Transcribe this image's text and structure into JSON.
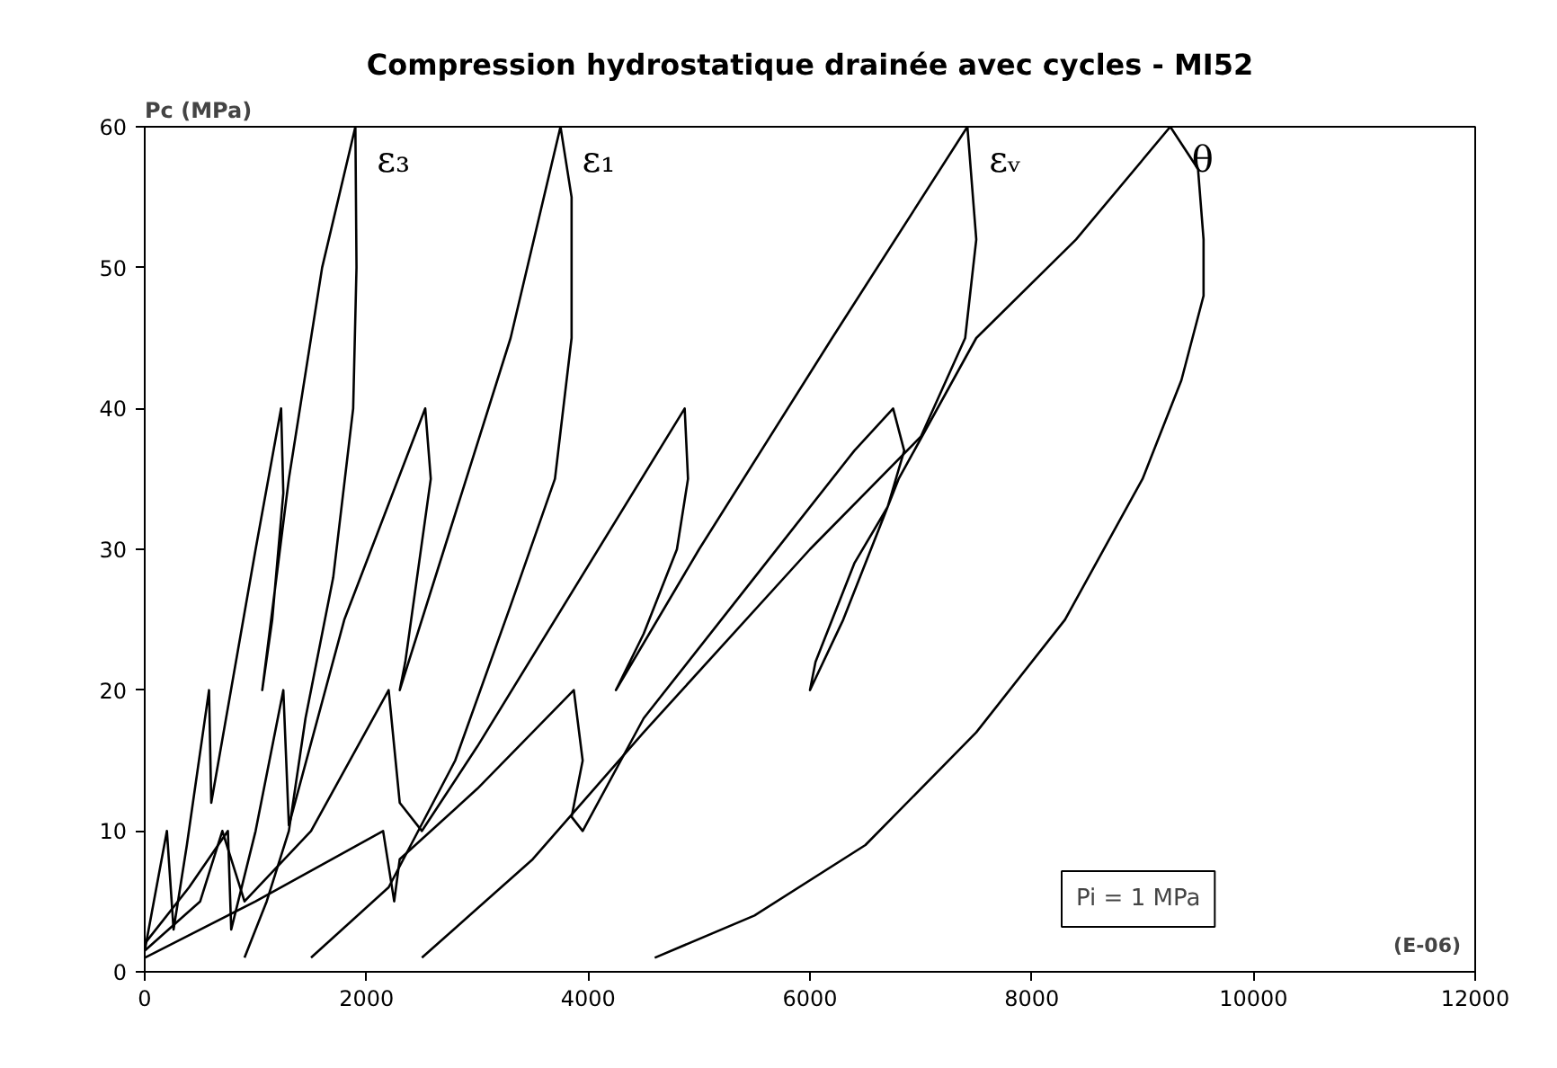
{
  "chart_data": {
    "type": "line",
    "title": "Compression hydrostatique drainée avec cycles - MI52",
    "ylabel": "Pc (MPa)",
    "annotations": [
      "(E-06)",
      "Pi = 1 MPa"
    ],
    "xlim": [
      0,
      12000
    ],
    "xticks": [
      0,
      2000,
      4000,
      6000,
      8000,
      10000,
      12000
    ],
    "ylim": [
      0,
      60
    ],
    "yticks": [
      0,
      10,
      20,
      30,
      40,
      50,
      60
    ],
    "grid": false,
    "legend": false,
    "marker": "none",
    "line_style": "solid",
    "series": [
      {
        "name": "ε₃",
        "color": "#000000",
        "x": [
          0,
          200,
          260,
          380,
          580,
          600,
          1000,
          1230,
          1250,
          1150,
          1060,
          1300,
          1600,
          1900,
          1910,
          1880,
          1700,
          1450,
          1300,
          1100,
          900
        ],
        "values": [
          1.5,
          10,
          3,
          9,
          20,
          12,
          30,
          40,
          34,
          25,
          20,
          35,
          50,
          60,
          50,
          40,
          28,
          18,
          10,
          5,
          1
        ]
      },
      {
        "name": "ε₁",
        "color": "#000000",
        "x": [
          0,
          400,
          750,
          780,
          1000,
          1250,
          1300,
          1800,
          2530,
          2580,
          2350,
          2300,
          2700,
          3300,
          3750,
          3850,
          3850,
          3700,
          3300,
          2800,
          2200,
          1500
        ],
        "values": [
          2,
          6,
          10,
          3,
          10,
          20,
          10.4,
          25,
          40,
          35,
          22,
          20,
          30,
          45,
          60,
          55,
          45,
          35,
          26,
          15,
          6,
          1
        ]
      },
      {
        "name": "εᵥ",
        "color": "#000000",
        "x": [
          0,
          500,
          700,
          900,
          1500,
          2200,
          2300,
          2500,
          3000,
          4870,
          4900,
          4800,
          4500,
          4250,
          5000,
          6200,
          7420,
          7500,
          7400,
          7000,
          6000,
          4500,
          3500,
          2500
        ],
        "values": [
          1.5,
          5,
          10,
          5,
          10,
          20,
          12,
          10,
          16,
          40,
          35,
          30,
          24,
          20,
          30,
          45,
          60,
          52,
          45,
          38,
          30,
          17,
          8,
          1
        ]
      },
      {
        "name": "θ",
        "color": "#000000",
        "x": [
          0,
          1000,
          2150,
          2250,
          2300,
          3000,
          3870,
          3950,
          3850,
          3950,
          4500,
          5500,
          6400,
          6750,
          6850,
          6700,
          6400,
          6050,
          6000,
          6300,
          6800,
          7500,
          8400,
          9250,
          9500,
          9550,
          9550,
          9350,
          9000,
          8300,
          7500,
          6500,
          5500,
          4600
        ],
        "values": [
          1,
          5,
          10,
          5,
          8,
          13,
          20,
          15,
          11,
          10,
          18,
          28,
          37,
          40,
          37,
          33,
          29,
          22,
          20,
          25,
          35,
          45,
          52,
          60,
          57,
          52,
          48,
          42,
          35,
          25,
          17,
          9,
          4,
          1
        ]
      }
    ]
  }
}
